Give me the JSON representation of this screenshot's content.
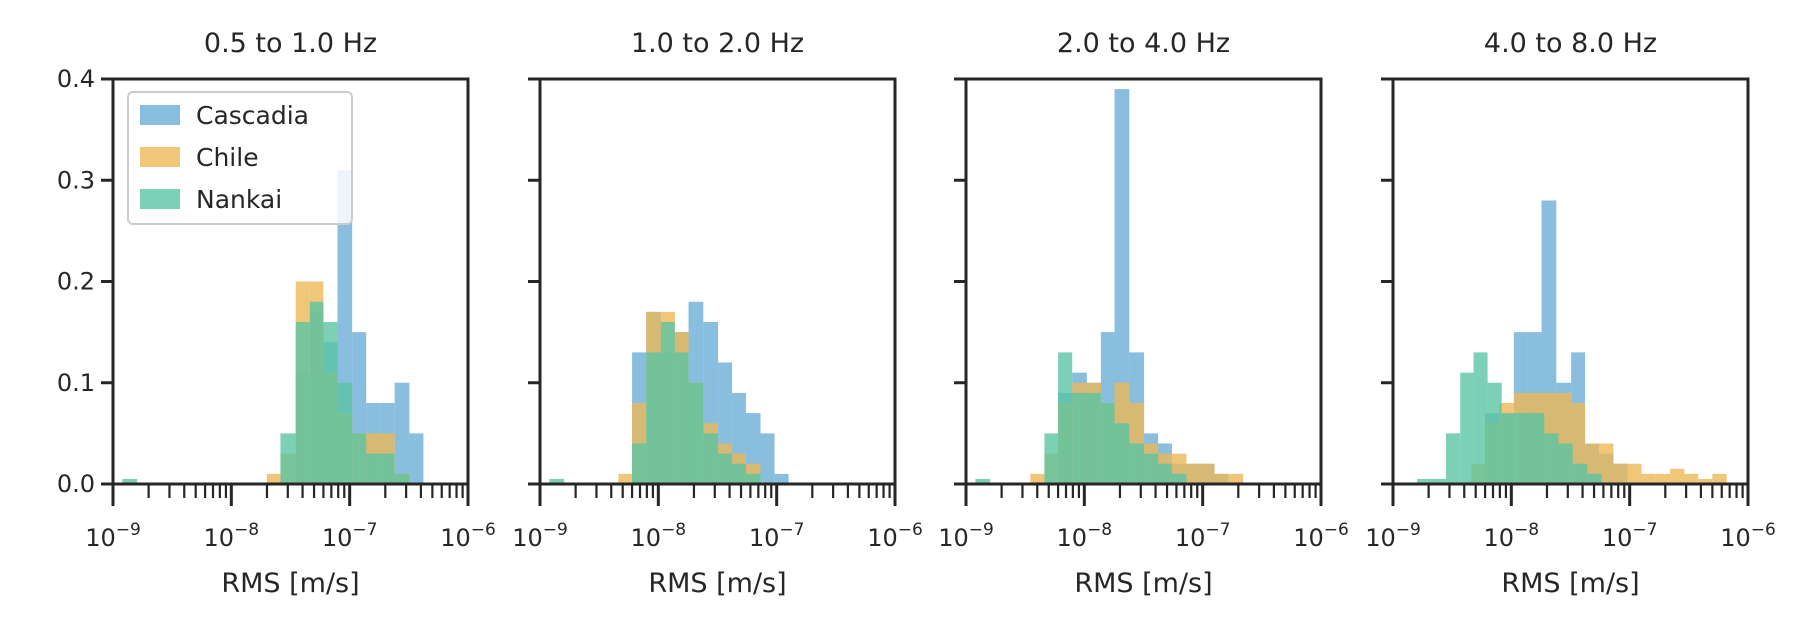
{
  "chart_data": {
    "type": "bar",
    "layout": "1x4 small multiples, shared y axis",
    "x_scale": "log",
    "xlim": [
      1e-09,
      1e-06
    ],
    "ylim": [
      0,
      0.4
    ],
    "y_ticks": [
      "0.0",
      "0.1",
      "0.2",
      "0.3",
      "0.4"
    ],
    "x_tick_base": "10",
    "x_tick_exponents": [
      "−9",
      "−8",
      "−7",
      "−6"
    ],
    "xlabel": "RMS [m/s]",
    "ylabel": "",
    "grid": false,
    "legend": {
      "location": "upper-left of first panel",
      "entries": [
        "Cascadia",
        "Chile",
        "Nankai"
      ]
    },
    "series_colors": {
      "Cascadia": "#6baed6",
      "Chile": "#ecb858",
      "Nankai": "#5bc4a4"
    },
    "bar_opacity": 0.8,
    "panels": [
      {
        "title": "0.5 to 1.0 Hz",
        "series": [
          {
            "name": "Cascadia",
            "bins": [
              [
                3.5e-08,
                4.6e-08,
                0.11
              ],
              [
                4.6e-08,
                6e-08,
                0.17
              ],
              [
                6e-08,
                7.9e-08,
                0.14
              ],
              [
                7.9e-08,
                1.05e-07,
                0.31
              ],
              [
                1.05e-07,
                1.38e-07,
                0.15
              ],
              [
                1.38e-07,
                1.8e-07,
                0.08
              ],
              [
                1.8e-07,
                2.4e-07,
                0.08
              ],
              [
                2.4e-07,
                3.2e-07,
                0.1
              ],
              [
                3.2e-07,
                4.2e-07,
                0.05
              ]
            ]
          },
          {
            "name": "Chile",
            "bins": [
              [
                2e-08,
                2.6e-08,
                0.01
              ],
              [
                2.6e-08,
                3.5e-08,
                0.03
              ],
              [
                3.5e-08,
                4.6e-08,
                0.2
              ],
              [
                4.6e-08,
                6e-08,
                0.2
              ],
              [
                6e-08,
                7.9e-08,
                0.11
              ],
              [
                7.9e-08,
                1.05e-07,
                0.07
              ],
              [
                1.05e-07,
                1.38e-07,
                0.05
              ],
              [
                1.38e-07,
                1.8e-07,
                0.05
              ],
              [
                1.8e-07,
                2.4e-07,
                0.05
              ],
              [
                2.4e-07,
                3.2e-07,
                0.01
              ]
            ]
          },
          {
            "name": "Nankai",
            "bins": [
              [
                1.2e-09,
                1.6e-09,
                0.005
              ],
              [
                2.6e-08,
                3.5e-08,
                0.05
              ],
              [
                3.5e-08,
                4.6e-08,
                0.16
              ],
              [
                4.6e-08,
                6e-08,
                0.18
              ],
              [
                6e-08,
                7.9e-08,
                0.16
              ],
              [
                7.9e-08,
                1.05e-07,
                0.1
              ],
              [
                1.05e-07,
                1.38e-07,
                0.05
              ],
              [
                1.38e-07,
                1.8e-07,
                0.03
              ],
              [
                1.8e-07,
                2.4e-07,
                0.03
              ],
              [
                2.4e-07,
                3.2e-07,
                0.01
              ]
            ]
          }
        ]
      },
      {
        "title": "1.0 to 2.0 Hz",
        "series": [
          {
            "name": "Cascadia",
            "bins": [
              [
                6e-09,
                7.9e-09,
                0.13
              ],
              [
                7.9e-09,
                1.05e-08,
                0.17
              ],
              [
                1.05e-08,
                1.38e-08,
                0.13
              ],
              [
                1.38e-08,
                1.8e-08,
                0.15
              ],
              [
                1.8e-08,
                2.4e-08,
                0.18
              ],
              [
                2.4e-08,
                3.2e-08,
                0.16
              ],
              [
                3.2e-08,
                4.2e-08,
                0.12
              ],
              [
                4.2e-08,
                5.5e-08,
                0.09
              ],
              [
                5.5e-08,
                7.3e-08,
                0.07
              ],
              [
                7.3e-08,
                9.6e-08,
                0.05
              ],
              [
                9.6e-08,
                1.26e-07,
                0.01
              ]
            ]
          },
          {
            "name": "Chile",
            "bins": [
              [
                4.6e-09,
                6e-09,
                0.01
              ],
              [
                6e-09,
                7.9e-09,
                0.08
              ],
              [
                7.9e-09,
                1.05e-08,
                0.17
              ],
              [
                1.05e-08,
                1.38e-08,
                0.17
              ],
              [
                1.38e-08,
                1.8e-08,
                0.15
              ],
              [
                1.8e-08,
                2.4e-08,
                0.1
              ],
              [
                2.4e-08,
                3.2e-08,
                0.06
              ],
              [
                3.2e-08,
                4.2e-08,
                0.04
              ],
              [
                4.2e-08,
                5.5e-08,
                0.03
              ],
              [
                5.5e-08,
                7.3e-08,
                0.02
              ]
            ]
          },
          {
            "name": "Nankai",
            "bins": [
              [
                1.2e-09,
                1.6e-09,
                0.005
              ],
              [
                6e-09,
                7.9e-09,
                0.04
              ],
              [
                7.9e-09,
                1.05e-08,
                0.13
              ],
              [
                1.05e-08,
                1.38e-08,
                0.16
              ],
              [
                1.38e-08,
                1.8e-08,
                0.13
              ],
              [
                1.8e-08,
                2.4e-08,
                0.1
              ],
              [
                2.4e-08,
                3.2e-08,
                0.05
              ],
              [
                3.2e-08,
                4.2e-08,
                0.03
              ],
              [
                4.2e-08,
                5.5e-08,
                0.02
              ],
              [
                5.5e-08,
                7.3e-08,
                0.01
              ]
            ]
          }
        ]
      },
      {
        "title": "2.0 to 4.0 Hz",
        "series": [
          {
            "name": "Cascadia",
            "bins": [
              [
                6e-09,
                7.9e-09,
                0.09
              ],
              [
                7.9e-09,
                1.05e-08,
                0.11
              ],
              [
                1.05e-08,
                1.38e-08,
                0.1
              ],
              [
                1.38e-08,
                1.8e-08,
                0.15
              ],
              [
                1.8e-08,
                2.4e-08,
                0.39
              ],
              [
                2.4e-08,
                3.2e-08,
                0.13
              ],
              [
                3.2e-08,
                4.2e-08,
                0.05
              ],
              [
                4.2e-08,
                5.5e-08,
                0.04
              ],
              [
                5.5e-08,
                7.3e-08,
                0.02
              ],
              [
                7.3e-08,
                9.6e-08,
                0.02
              ],
              [
                9.6e-08,
                1.26e-07,
                0.02
              ],
              [
                1.26e-07,
                1.66e-07,
                0.01
              ]
            ]
          },
          {
            "name": "Chile",
            "bins": [
              [
                3.5e-09,
                4.6e-09,
                0.01
              ],
              [
                4.6e-09,
                6e-09,
                0.03
              ],
              [
                6e-09,
                7.9e-09,
                0.08
              ],
              [
                7.9e-09,
                1.05e-08,
                0.1
              ],
              [
                1.05e-08,
                1.38e-08,
                0.1
              ],
              [
                1.38e-08,
                1.8e-08,
                0.08
              ],
              [
                1.8e-08,
                2.4e-08,
                0.1
              ],
              [
                2.4e-08,
                3.2e-08,
                0.08
              ],
              [
                3.2e-08,
                4.2e-08,
                0.04
              ],
              [
                4.2e-08,
                5.5e-08,
                0.03
              ],
              [
                5.5e-08,
                7.3e-08,
                0.03
              ],
              [
                7.3e-08,
                9.6e-08,
                0.02
              ],
              [
                9.6e-08,
                1.26e-07,
                0.02
              ],
              [
                1.26e-07,
                1.66e-07,
                0.01
              ],
              [
                1.66e-07,
                2.2e-07,
                0.01
              ]
            ]
          },
          {
            "name": "Nankai",
            "bins": [
              [
                1.2e-09,
                1.6e-09,
                0.005
              ],
              [
                4.6e-09,
                6e-09,
                0.05
              ],
              [
                6e-09,
                7.9e-09,
                0.13
              ],
              [
                7.9e-09,
                1.05e-08,
                0.09
              ],
              [
                1.05e-08,
                1.38e-08,
                0.09
              ],
              [
                1.38e-08,
                1.8e-08,
                0.08
              ],
              [
                1.8e-08,
                2.4e-08,
                0.06
              ],
              [
                2.4e-08,
                3.2e-08,
                0.04
              ],
              [
                3.2e-08,
                4.2e-08,
                0.03
              ],
              [
                4.2e-08,
                5.5e-08,
                0.02
              ],
              [
                5.5e-08,
                7.3e-08,
                0.01
              ]
            ]
          }
        ]
      },
      {
        "title": "4.0 to 8.0 Hz",
        "series": [
          {
            "name": "Cascadia",
            "bins": [
              [
                6e-09,
                7.9e-09,
                0.07
              ],
              [
                7.9e-09,
                1.05e-08,
                0.07
              ],
              [
                1.05e-08,
                1.38e-08,
                0.15
              ],
              [
                1.38e-08,
                1.8e-08,
                0.15
              ],
              [
                1.8e-08,
                2.4e-08,
                0.28
              ],
              [
                2.4e-08,
                3.2e-08,
                0.1
              ],
              [
                3.2e-08,
                4.2e-08,
                0.13
              ],
              [
                4.2e-08,
                5.5e-08,
                0.04
              ],
              [
                5.5e-08,
                7.3e-08,
                0.03
              ],
              [
                7.3e-08,
                9.6e-08,
                0.02
              ]
            ]
          },
          {
            "name": "Chile",
            "bins": [
              [
                4.6e-09,
                6e-09,
                0.02
              ],
              [
                6e-09,
                7.9e-09,
                0.06
              ],
              [
                7.9e-09,
                1.05e-08,
                0.08
              ],
              [
                1.05e-08,
                1.38e-08,
                0.09
              ],
              [
                1.38e-08,
                1.8e-08,
                0.09
              ],
              [
                1.8e-08,
                2.4e-08,
                0.09
              ],
              [
                2.4e-08,
                3.2e-08,
                0.09
              ],
              [
                3.2e-08,
                4.2e-08,
                0.08
              ],
              [
                4.2e-08,
                5.5e-08,
                0.04
              ],
              [
                5.5e-08,
                7.3e-08,
                0.04
              ],
              [
                7.3e-08,
                9.6e-08,
                0.02
              ],
              [
                9.6e-08,
                1.26e-07,
                0.02
              ],
              [
                1.26e-07,
                1.66e-07,
                0.01
              ],
              [
                1.66e-07,
                2.2e-07,
                0.01
              ],
              [
                2.2e-07,
                2.9e-07,
                0.015
              ],
              [
                2.9e-07,
                3.8e-07,
                0.01
              ],
              [
                3.8e-07,
                5e-07,
                0.005
              ],
              [
                5e-07,
                6.6e-07,
                0.01
              ]
            ]
          },
          {
            "name": "Nankai",
            "bins": [
              [
                1.6e-09,
                2.1e-09,
                0.005
              ],
              [
                2.1e-09,
                2.8e-09,
                0.005
              ],
              [
                2.8e-09,
                3.7e-09,
                0.05
              ],
              [
                3.7e-09,
                4.8e-09,
                0.11
              ],
              [
                4.8e-09,
                6.3e-09,
                0.13
              ],
              [
                6.3e-09,
                8.3e-09,
                0.1
              ],
              [
                8.3e-09,
                1.09e-08,
                0.07
              ],
              [
                1.09e-08,
                1.44e-08,
                0.07
              ],
              [
                1.44e-08,
                1.9e-08,
                0.07
              ],
              [
                1.9e-08,
                2.5e-08,
                0.05
              ],
              [
                2.5e-08,
                3.3e-08,
                0.04
              ],
              [
                3.3e-08,
                4.4e-08,
                0.02
              ],
              [
                4.4e-08,
                5.8e-08,
                0.01
              ]
            ]
          }
        ]
      }
    ]
  }
}
